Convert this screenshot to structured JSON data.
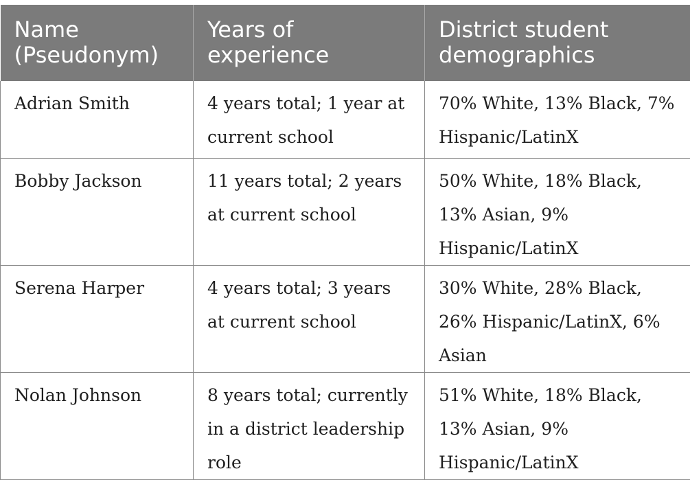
{
  "table": {
    "headers": [
      "Name (Pseudonym)",
      "Years of experience",
      "District student demographics"
    ],
    "rows": [
      {
        "name": "Adrian Smith",
        "experience": "4 years total; 1 year at current school",
        "demographics": "70% White, 13% Black, 7% Hispanic/LatinX"
      },
      {
        "name": "Bobby Jackson",
        "experience": "11 years total; 2 years at current school",
        "demographics": "50% White, 18% Black, 13% Asian, 9% Hispanic/LatinX"
      },
      {
        "name": "Serena Harper",
        "experience": "4 years total; 3 years at current school",
        "demographics": "30% White, 28% Black, 26% Hispanic/LatinX, 6% Asian"
      },
      {
        "name": "Nolan Johnson",
        "experience": "8 years total; currently in a district leadership role",
        "demographics": "51% White, 18% Black, 13% Asian, 9% Hispanic/LatinX"
      }
    ]
  }
}
